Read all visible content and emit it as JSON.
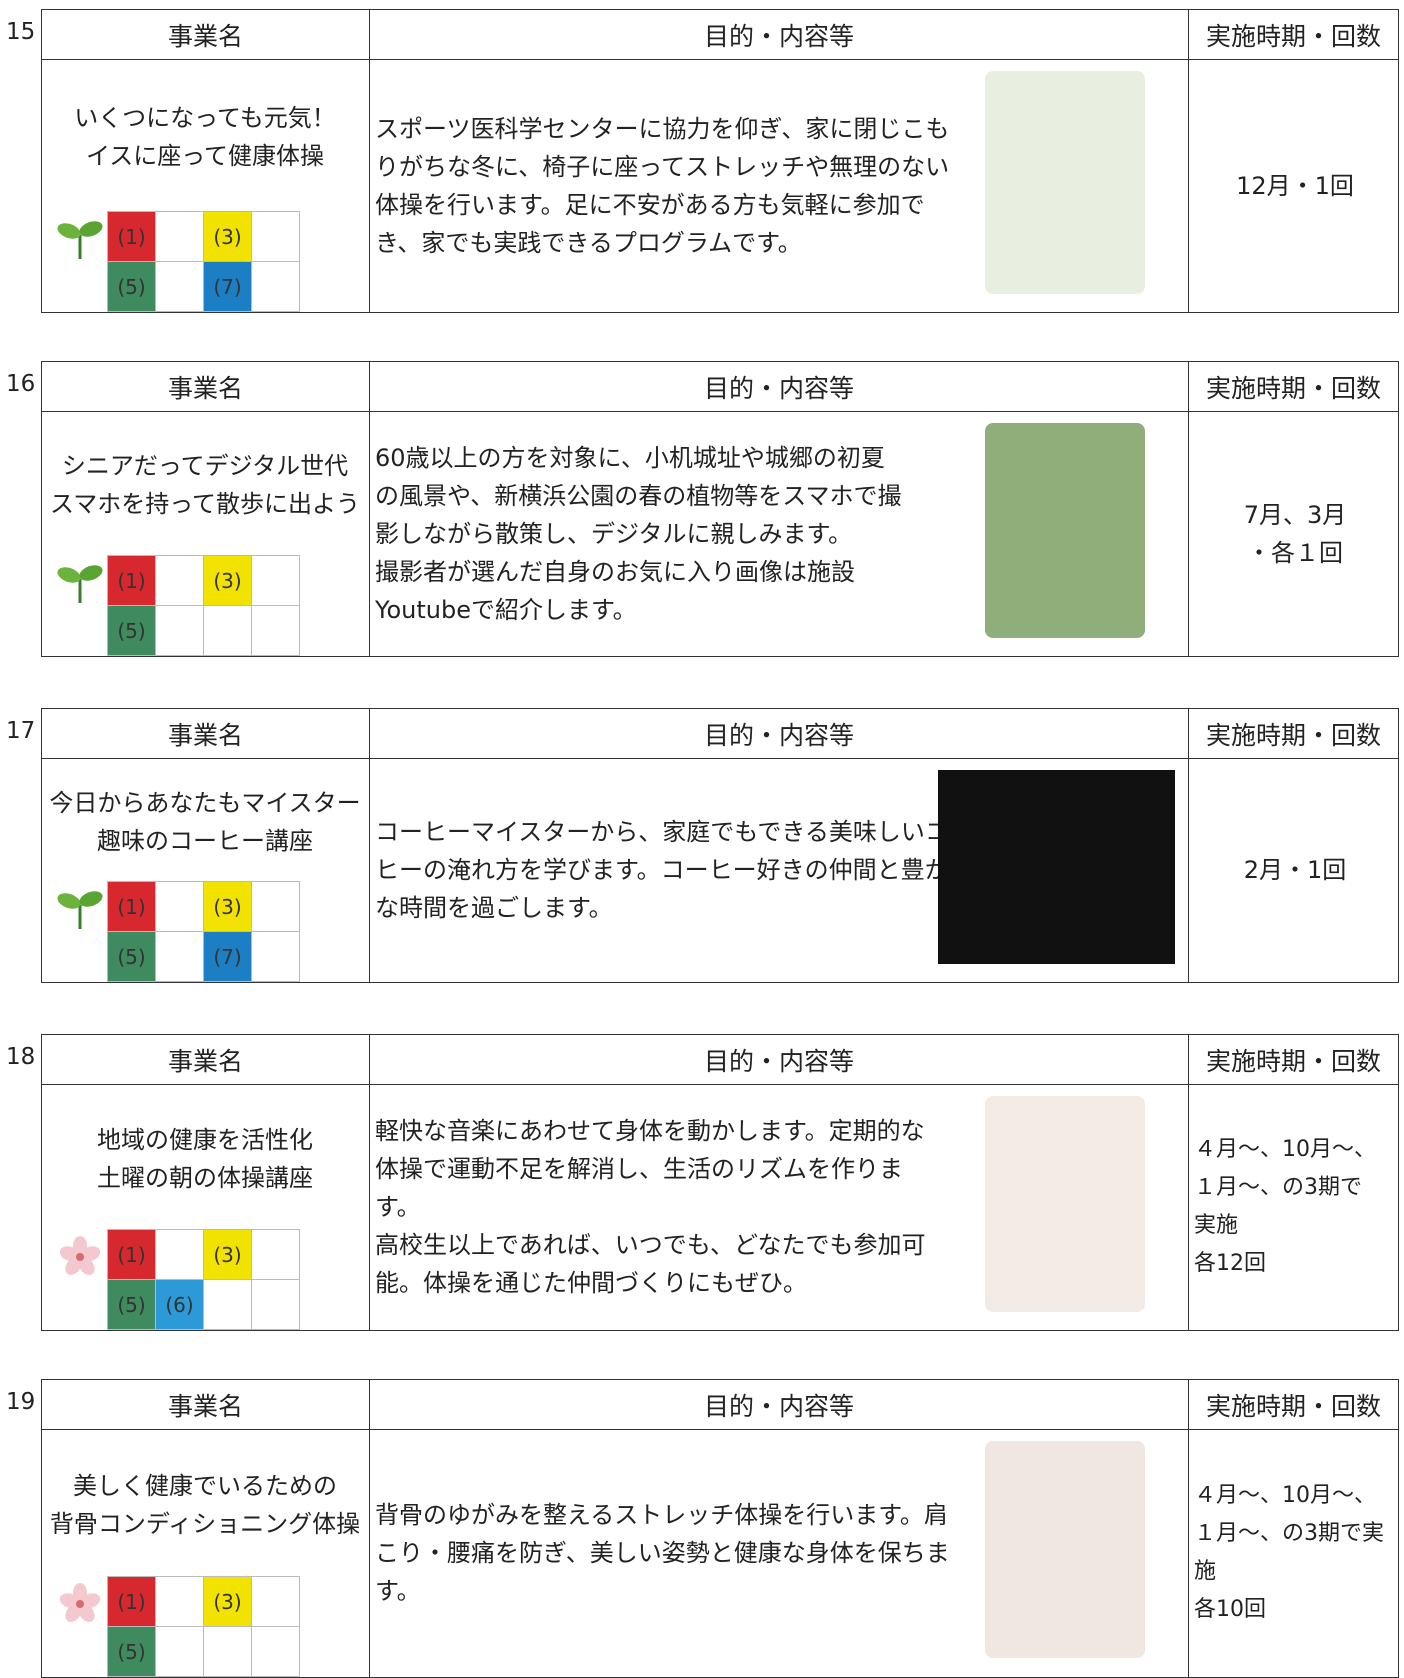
{
  "headers": [
    "事業名",
    "目的・内容等",
    "実施時期・回数"
  ],
  "entries": [
    {
      "number": "15",
      "name": [
        "いくつになっても元気！",
        "イスに座って健康体操"
      ],
      "description": [
        "スポーツ医科学センターに協力を仰ぎ、家に閉じこも",
        "りがちな冬に、椅子に座ってストレッチや無理のない",
        "体操を行います。足に不安がある方も気軽に参加で",
        "き、家でも実践できるプログラムです。"
      ],
      "schedule": [
        "12月・1回"
      ],
      "icon": "sprout",
      "image_fill": "#e9efe0",
      "tags": [
        {
          "label": "(1)",
          "color": "#d7282f"
        },
        {
          "label": "(3)",
          "color": "#f2e200"
        },
        {
          "label": "(5)",
          "color": "#3f8a5e"
        },
        {
          "label": "(7)",
          "color": "#1c7fc4"
        }
      ]
    },
    {
      "number": "16",
      "name": [
        "シニアだってデジタル世代",
        "スマホを持って散歩に出よう"
      ],
      "description": [
        "60歳以上の方を対象に、小机城址や城郷の初夏",
        "の風景や、新横浜公園の春の植物等をスマホで撮",
        "影しながら散策し、デジタルに親しみます。",
        "撮影者が選んだ自身のお気に入り画像は施設",
        "Youtubeで紹介します。"
      ],
      "schedule": [
        "7月、3月",
        "・各１回"
      ],
      "icon": "sprout",
      "image_fill": "#8fae7a",
      "tags": [
        {
          "label": "(1)",
          "color": "#d7282f"
        },
        {
          "label": "(3)",
          "color": "#f2e200"
        },
        {
          "label": "(5)",
          "color": "#3f8a5e"
        }
      ]
    },
    {
      "number": "17",
      "name": [
        "今日からあなたもマイスター",
        "趣味のコーヒー講座"
      ],
      "description": [
        "コーヒーマイスターから、家庭でもできる美味しいコー",
        "ヒーの淹れ方を学びます。コーヒー好きの仲間と豊か",
        "な時間を過ごします。"
      ],
      "schedule": [
        "2月・1回"
      ],
      "icon": "sprout",
      "image_fill": "#111111",
      "tags": [
        {
          "label": "(1)",
          "color": "#d7282f"
        },
        {
          "label": "(3)",
          "color": "#f2e200"
        },
        {
          "label": "(5)",
          "color": "#3f8a5e"
        },
        {
          "label": "(7)",
          "color": "#1c7fc4"
        }
      ]
    },
    {
      "number": "18",
      "name": [
        "地域の健康を活性化",
        "土曜の朝の体操講座"
      ],
      "description": [
        "軽快な音楽にあわせて身体を動かします。定期的な",
        "体操で運動不足を解消し、生活のリズムを作りま",
        "す。",
        "高校生以上であれば、いつでも、どなたでも参加可",
        "能。体操を通じた仲間づくりにもぜひ。"
      ],
      "schedule": [
        "４月～、10月～、",
        "１月～、の3期で",
        "実施",
        "各12回"
      ],
      "icon": "flower",
      "image_fill": "#f3ece6",
      "tags": [
        {
          "label": "(1)",
          "color": "#d7282f"
        },
        {
          "label": "(3)",
          "color": "#f2e200"
        },
        {
          "label": "(5)",
          "color": "#3f8a5e"
        },
        {
          "label": "(6)",
          "color": "#2b9ad6"
        }
      ]
    },
    {
      "number": "19",
      "name": [
        "美しく健康でいるための",
        "背骨コンディショニング体操"
      ],
      "description": [
        "背骨のゆがみを整えるストレッチ体操を行います。肩",
        "こり・腰痛を防ぎ、美しい姿勢と健康な身体を保ちま",
        "す。"
      ],
      "schedule": [
        "４月～、10月～、",
        "１月～、の3期で実",
        "施",
        "各10回"
      ],
      "icon": "flower",
      "image_fill": "#f0e6e2",
      "tags": [
        {
          "label": "(1)",
          "color": "#d7282f"
        },
        {
          "label": "(3)",
          "color": "#f2e200"
        },
        {
          "label": "(5)",
          "color": "#3f8a5e"
        }
      ]
    }
  ]
}
